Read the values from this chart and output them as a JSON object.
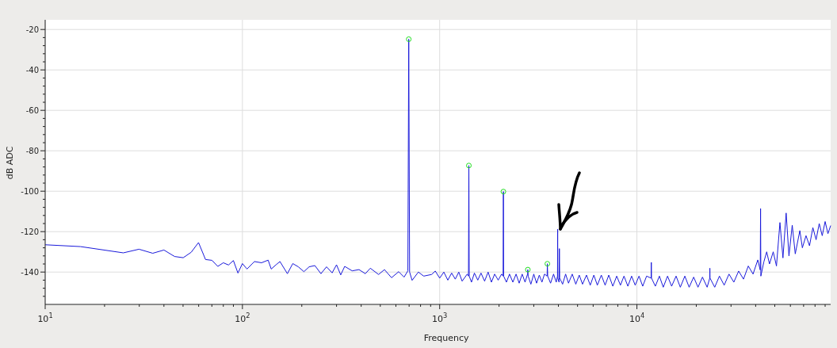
{
  "chart_data": {
    "type": "line",
    "xlabel": "Frequency",
    "ylabel": "dB ADC",
    "log": "x",
    "grid": true,
    "xlim": [
      10,
      96000
    ],
    "ylim": [
      -156,
      -16
    ],
    "xticks": [
      {
        "value": 10,
        "label": "10$^{1}$"
      },
      {
        "value": 20,
        "label": null
      },
      {
        "value": 30,
        "label": null
      },
      {
        "value": 40,
        "label": null
      },
      {
        "value": 50,
        "label": null
      },
      {
        "value": 60,
        "label": null
      },
      {
        "value": 70,
        "label": null
      },
      {
        "value": 80,
        "label": null
      },
      {
        "value": 90,
        "label": null
      },
      {
        "value": 100,
        "label": "10$^{2}$"
      },
      {
        "value": 200,
        "label": null
      },
      {
        "value": 300,
        "label": null
      },
      {
        "value": 400,
        "label": null
      },
      {
        "value": 500,
        "label": null
      },
      {
        "value": 600,
        "label": null
      },
      {
        "value": 700,
        "label": null
      },
      {
        "value": 800,
        "label": null
      },
      {
        "value": 900,
        "label": null
      },
      {
        "value": 1000,
        "label": "10$^{3}$"
      },
      {
        "value": 2000,
        "label": null
      },
      {
        "value": 3000,
        "label": null
      },
      {
        "value": 4000,
        "label": null
      },
      {
        "value": 5000,
        "label": null
      },
      {
        "value": 6000,
        "label": null
      },
      {
        "value": 7000,
        "label": null
      },
      {
        "value": 8000,
        "label": null
      },
      {
        "value": 9000,
        "label": null
      },
      {
        "value": 10000,
        "label": "10$^{4}$"
      },
      {
        "value": 20000,
        "label": null
      },
      {
        "value": 30000,
        "label": null
      },
      {
        "value": 40000,
        "label": null
      },
      {
        "value": 50000,
        "label": null
      },
      {
        "value": 60000,
        "label": null
      },
      {
        "value": 70000,
        "label": null
      },
      {
        "value": 80000,
        "label": null
      },
      {
        "value": 90000,
        "label": null
      }
    ],
    "yticks": [
      {
        "value": -152,
        "label": null
      },
      {
        "value": -148,
        "label": null
      },
      {
        "value": -144,
        "label": null
      },
      -140,
      {
        "value": -136,
        "label": null
      },
      {
        "value": -132,
        "label": null
      },
      {
        "value": -128,
        "label": null
      },
      {
        "value": -124,
        "label": null
      },
      -120,
      {
        "value": -116,
        "label": null
      },
      {
        "value": -112,
        "label": null
      },
      {
        "value": -108,
        "label": null
      },
      {
        "value": -104,
        "label": null
      },
      -100,
      {
        "value": -96,
        "label": null
      },
      {
        "value": -92,
        "label": null
      },
      {
        "value": -88,
        "label": null
      },
      {
        "value": -84,
        "label": null
      },
      -80,
      {
        "value": -76,
        "label": null
      },
      {
        "value": -72,
        "label": null
      },
      {
        "value": -68,
        "label": null
      },
      {
        "value": -64,
        "label": null
      },
      -60,
      {
        "value": -56,
        "label": null
      },
      {
        "value": -52,
        "label": null
      },
      {
        "value": -48,
        "label": null
      },
      {
        "value": -44,
        "label": null
      },
      -40,
      {
        "value": -36,
        "label": null
      },
      {
        "value": -32,
        "label": null
      },
      {
        "value": -28,
        "label": null
      },
      {
        "value": -24,
        "label": null
      },
      -20
    ],
    "series": [
      {
        "color": "#1a1adb",
        "x": [
          10,
          15.1,
          24.9,
          29.9,
          35.1,
          40,
          45.3,
          50.1,
          55,
          59.9,
          65,
          70.1,
          75,
          80,
          85,
          90,
          94.9,
          100,
          105.5,
          115,
          125,
          135,
          140,
          148,
          155,
          169,
          180,
          192,
          205,
          218,
          233,
          250,
          267,
          285,
          300,
          315,
          330,
          360,
          390,
          420,
          445,
          490,
          525,
          570,
          620,
          660,
          690,
          697,
          704,
          725,
          780,
          830,
          910,
          950,
          1000,
          1050,
          1100,
          1150,
          1200,
          1250,
          1300,
          1380,
          1400,
          1406,
          1412,
          1450,
          1500,
          1560,
          1620,
          1690,
          1760,
          1830,
          1900,
          1980,
          2060,
          2098,
          2104,
          2110,
          2180,
          2260,
          2350,
          2440,
          2530,
          2620,
          2710,
          2790,
          2799,
          2810,
          2900,
          3000,
          3100,
          3200,
          3300,
          3400,
          3505,
          3516,
          3530,
          3650,
          3780,
          3900,
          3958,
          3965,
          3972,
          4030,
          4045,
          4060,
          4200,
          4350,
          4500,
          4700,
          4900,
          5100,
          5300,
          5550,
          5800,
          6050,
          6300,
          6600,
          6900,
          7200,
          7550,
          7900,
          8250,
          8600,
          9000,
          9400,
          9800,
          10250,
          10700,
          11200,
          11800,
          11830,
          11860,
          12400,
          13000,
          13600,
          14300,
          15000,
          15800,
          16600,
          17500,
          18400,
          19400,
          20400,
          21500,
          22700,
          23400,
          23440,
          23480,
          24800,
          26200,
          27700,
          29300,
          31000,
          32800,
          34700,
          36700,
          38800,
          41000,
          42200,
          42360,
          42500,
          44000,
          45500,
          47000,
          49100,
          51000,
          53100,
          55000,
          57100,
          59000,
          61300,
          63500,
          67000,
          69000,
          72000,
          75000,
          78000,
          81000,
          84000,
          87000,
          90000,
          93000,
          96000
        ],
        "values": [
          -126.5,
          -127.4,
          -130.5,
          -128.7,
          -130.7,
          -129.1,
          -132.3,
          -132.9,
          -130.2,
          -125.4,
          -133.8,
          -134.2,
          -137.2,
          -135.4,
          -136.5,
          -134.3,
          -140.5,
          -135.8,
          -138.5,
          -134.8,
          -135.4,
          -134.1,
          -138.5,
          -136.4,
          -134.8,
          -140.8,
          -135.8,
          -137.4,
          -139.8,
          -137.4,
          -136.8,
          -140.8,
          -137.4,
          -140.4,
          -136.4,
          -141.4,
          -137.2,
          -139.4,
          -138.8,
          -140.8,
          -138.1,
          -141.2,
          -138.8,
          -142.8,
          -139.8,
          -142.5,
          -139.4,
          -24.8,
          -140,
          -144.1,
          -140,
          -142,
          -141.2,
          -139.5,
          -143,
          -140,
          -144,
          -140.5,
          -143.5,
          -140,
          -144.5,
          -141,
          -142,
          -87.3,
          -142,
          -145,
          -140.5,
          -144,
          -140.5,
          -144.5,
          -140,
          -145,
          -141,
          -144,
          -141,
          -142,
          -100.2,
          -142,
          -145,
          -141,
          -145,
          -141,
          -145.5,
          -141,
          -145,
          -141,
          -138.8,
          -142,
          -146,
          -141,
          -145.5,
          -141.5,
          -145,
          -141,
          -142,
          -135.9,
          -142,
          -145.5,
          -141,
          -145,
          -142,
          -118.8,
          -143,
          -145,
          -128.4,
          -143,
          -146,
          -141,
          -145.5,
          -141,
          -146,
          -141.5,
          -146,
          -141.5,
          -146.5,
          -141.5,
          -146.5,
          -141.5,
          -146.5,
          -141.5,
          -147,
          -142,
          -146.5,
          -142,
          -147,
          -142,
          -146.5,
          -142,
          -147,
          -142,
          -143,
          -135.2,
          -143,
          -147,
          -142,
          -147.5,
          -142,
          -147,
          -142,
          -147.5,
          -142,
          -147.5,
          -142.5,
          -147.5,
          -142.5,
          -147.5,
          -143,
          -138.1,
          -143,
          -147.5,
          -142,
          -146.5,
          -141,
          -145,
          -139.5,
          -143.5,
          -137,
          -141,
          -134,
          -139,
          -108.6,
          -142,
          -135,
          -130,
          -136,
          -130,
          -137,
          -115.5,
          -133,
          -110.8,
          -132,
          -116.8,
          -131,
          -119.5,
          -128,
          -122,
          -127,
          -118,
          -124,
          -116,
          -122,
          -115,
          -121,
          -117
        ]
      },
      {
        "type": "scatter",
        "marker": "circle",
        "color": "#22dd22",
        "x": [
          697,
          1406,
          2104,
          2799,
          3516
        ],
        "values": [
          -24.8,
          -87.3,
          -100.2,
          -138.8,
          -135.9
        ]
      }
    ]
  }
}
